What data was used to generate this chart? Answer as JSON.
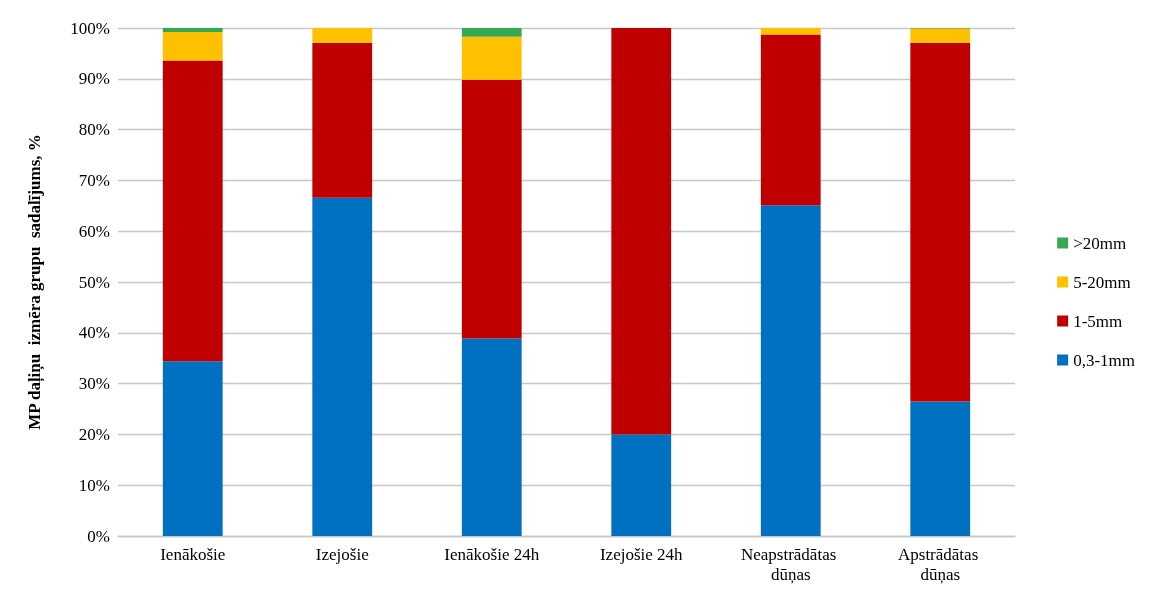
{
  "chart_data": {
    "type": "bar",
    "stacked": true,
    "ylabel": "MP daļiņu  izmēra grupu  sadalījums, %",
    "categories": [
      "Ienākošie",
      "Izejošie",
      "Ienākošie 24h",
      "Izejošie 24h",
      "Neapstrādātas dūņas",
      "Apstrādātas dūņas"
    ],
    "series": [
      {
        "name": "0,3-1mm",
        "color": "#0070c0",
        "values": [
          34.4,
          66.6,
          38.9,
          20.0,
          65.1,
          26.5
        ]
      },
      {
        "name": "1-5mm",
        "color": "#c00000",
        "values": [
          59.2,
          30.5,
          50.9,
          80.0,
          33.6,
          70.6
        ]
      },
      {
        "name": "5-20mm",
        "color": "#ffc000",
        "values": [
          5.6,
          2.9,
          8.5,
          0,
          1.3,
          2.8
        ]
      },
      {
        "name": ">20mm",
        "color": "#34a853",
        "values": [
          0.8,
          0,
          1.7,
          0,
          0,
          0.1
        ]
      }
    ],
    "ylim": [
      0,
      100
    ],
    "yticks": [
      {
        "value": 0,
        "label": "0%"
      },
      {
        "value": 10,
        "label": "10%"
      },
      {
        "value": 20,
        "label": "20%"
      },
      {
        "value": 30,
        "label": "30%"
      },
      {
        "value": 40,
        "label": "40%"
      },
      {
        "value": 50,
        "label": "50%"
      },
      {
        "value": 60,
        "label": "60%"
      },
      {
        "value": 70,
        "label": "70%"
      },
      {
        "value": 80,
        "label": "80%"
      },
      {
        "value": 90,
        "label": "90%"
      },
      {
        "value": 100,
        "label": "100%"
      }
    ],
    "grid": "y",
    "legend": "right"
  }
}
